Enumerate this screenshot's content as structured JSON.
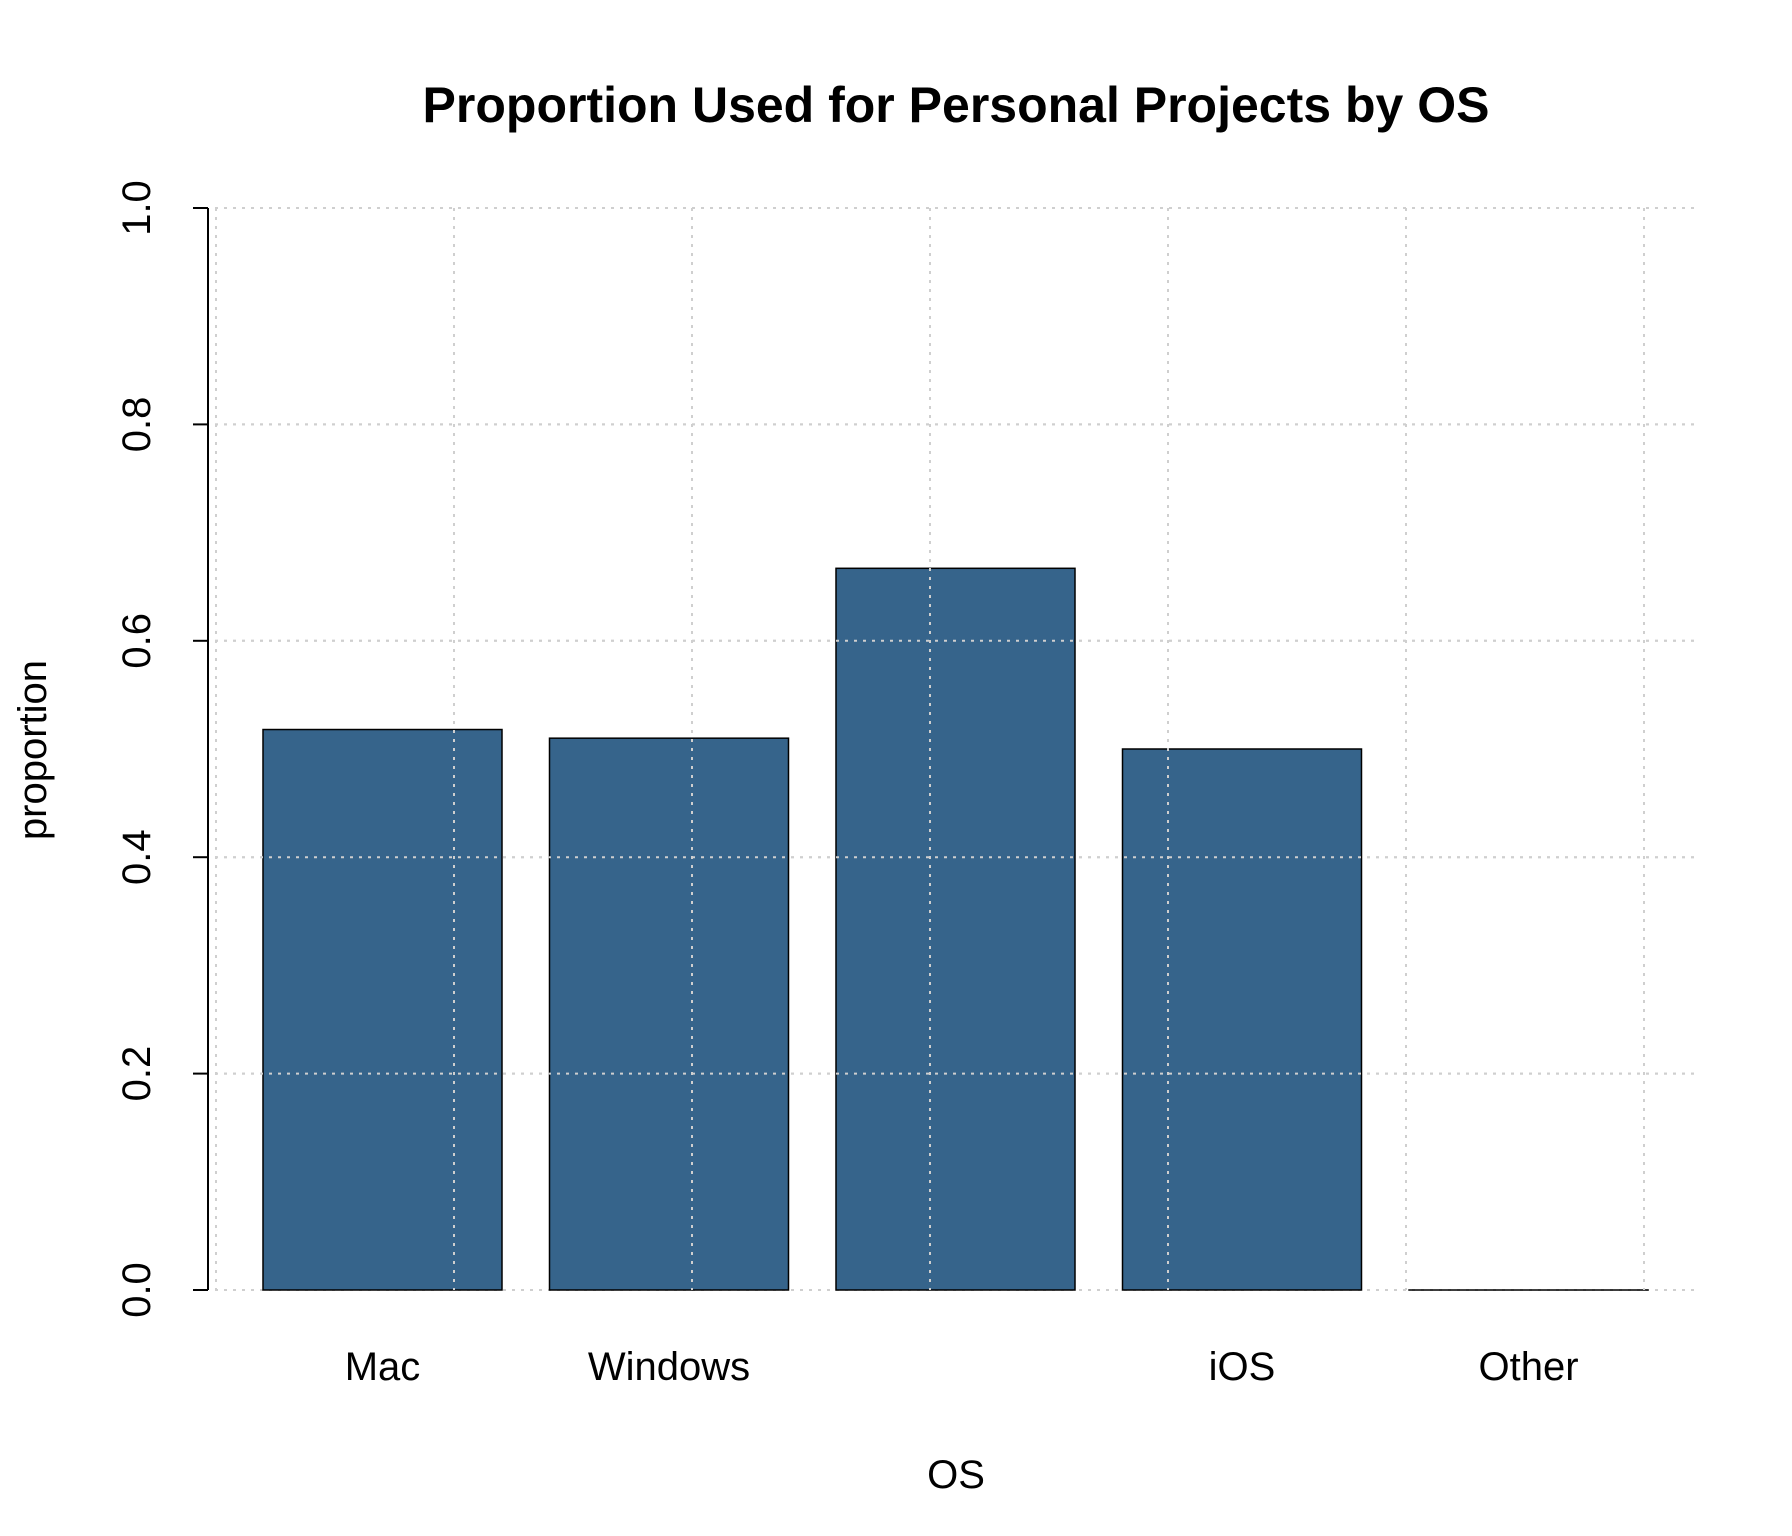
{
  "chart_data": {
    "type": "bar",
    "title": "Proportion Used for Personal Projects by OS",
    "xlabel": "OS",
    "ylabel": "proportion",
    "categories": [
      "Mac",
      "Windows",
      "",
      "iOS",
      "Other"
    ],
    "values": [
      0.518,
      0.51,
      0.667,
      0.5,
      0.0
    ],
    "ylim": [
      0,
      1
    ],
    "yticks": [
      "0.0",
      "0.2",
      "0.4",
      "0.6",
      "0.8",
      "1.0"
    ],
    "grid": true,
    "bar_color": "#36648B",
    "grid_color": "#cfcfcf"
  }
}
